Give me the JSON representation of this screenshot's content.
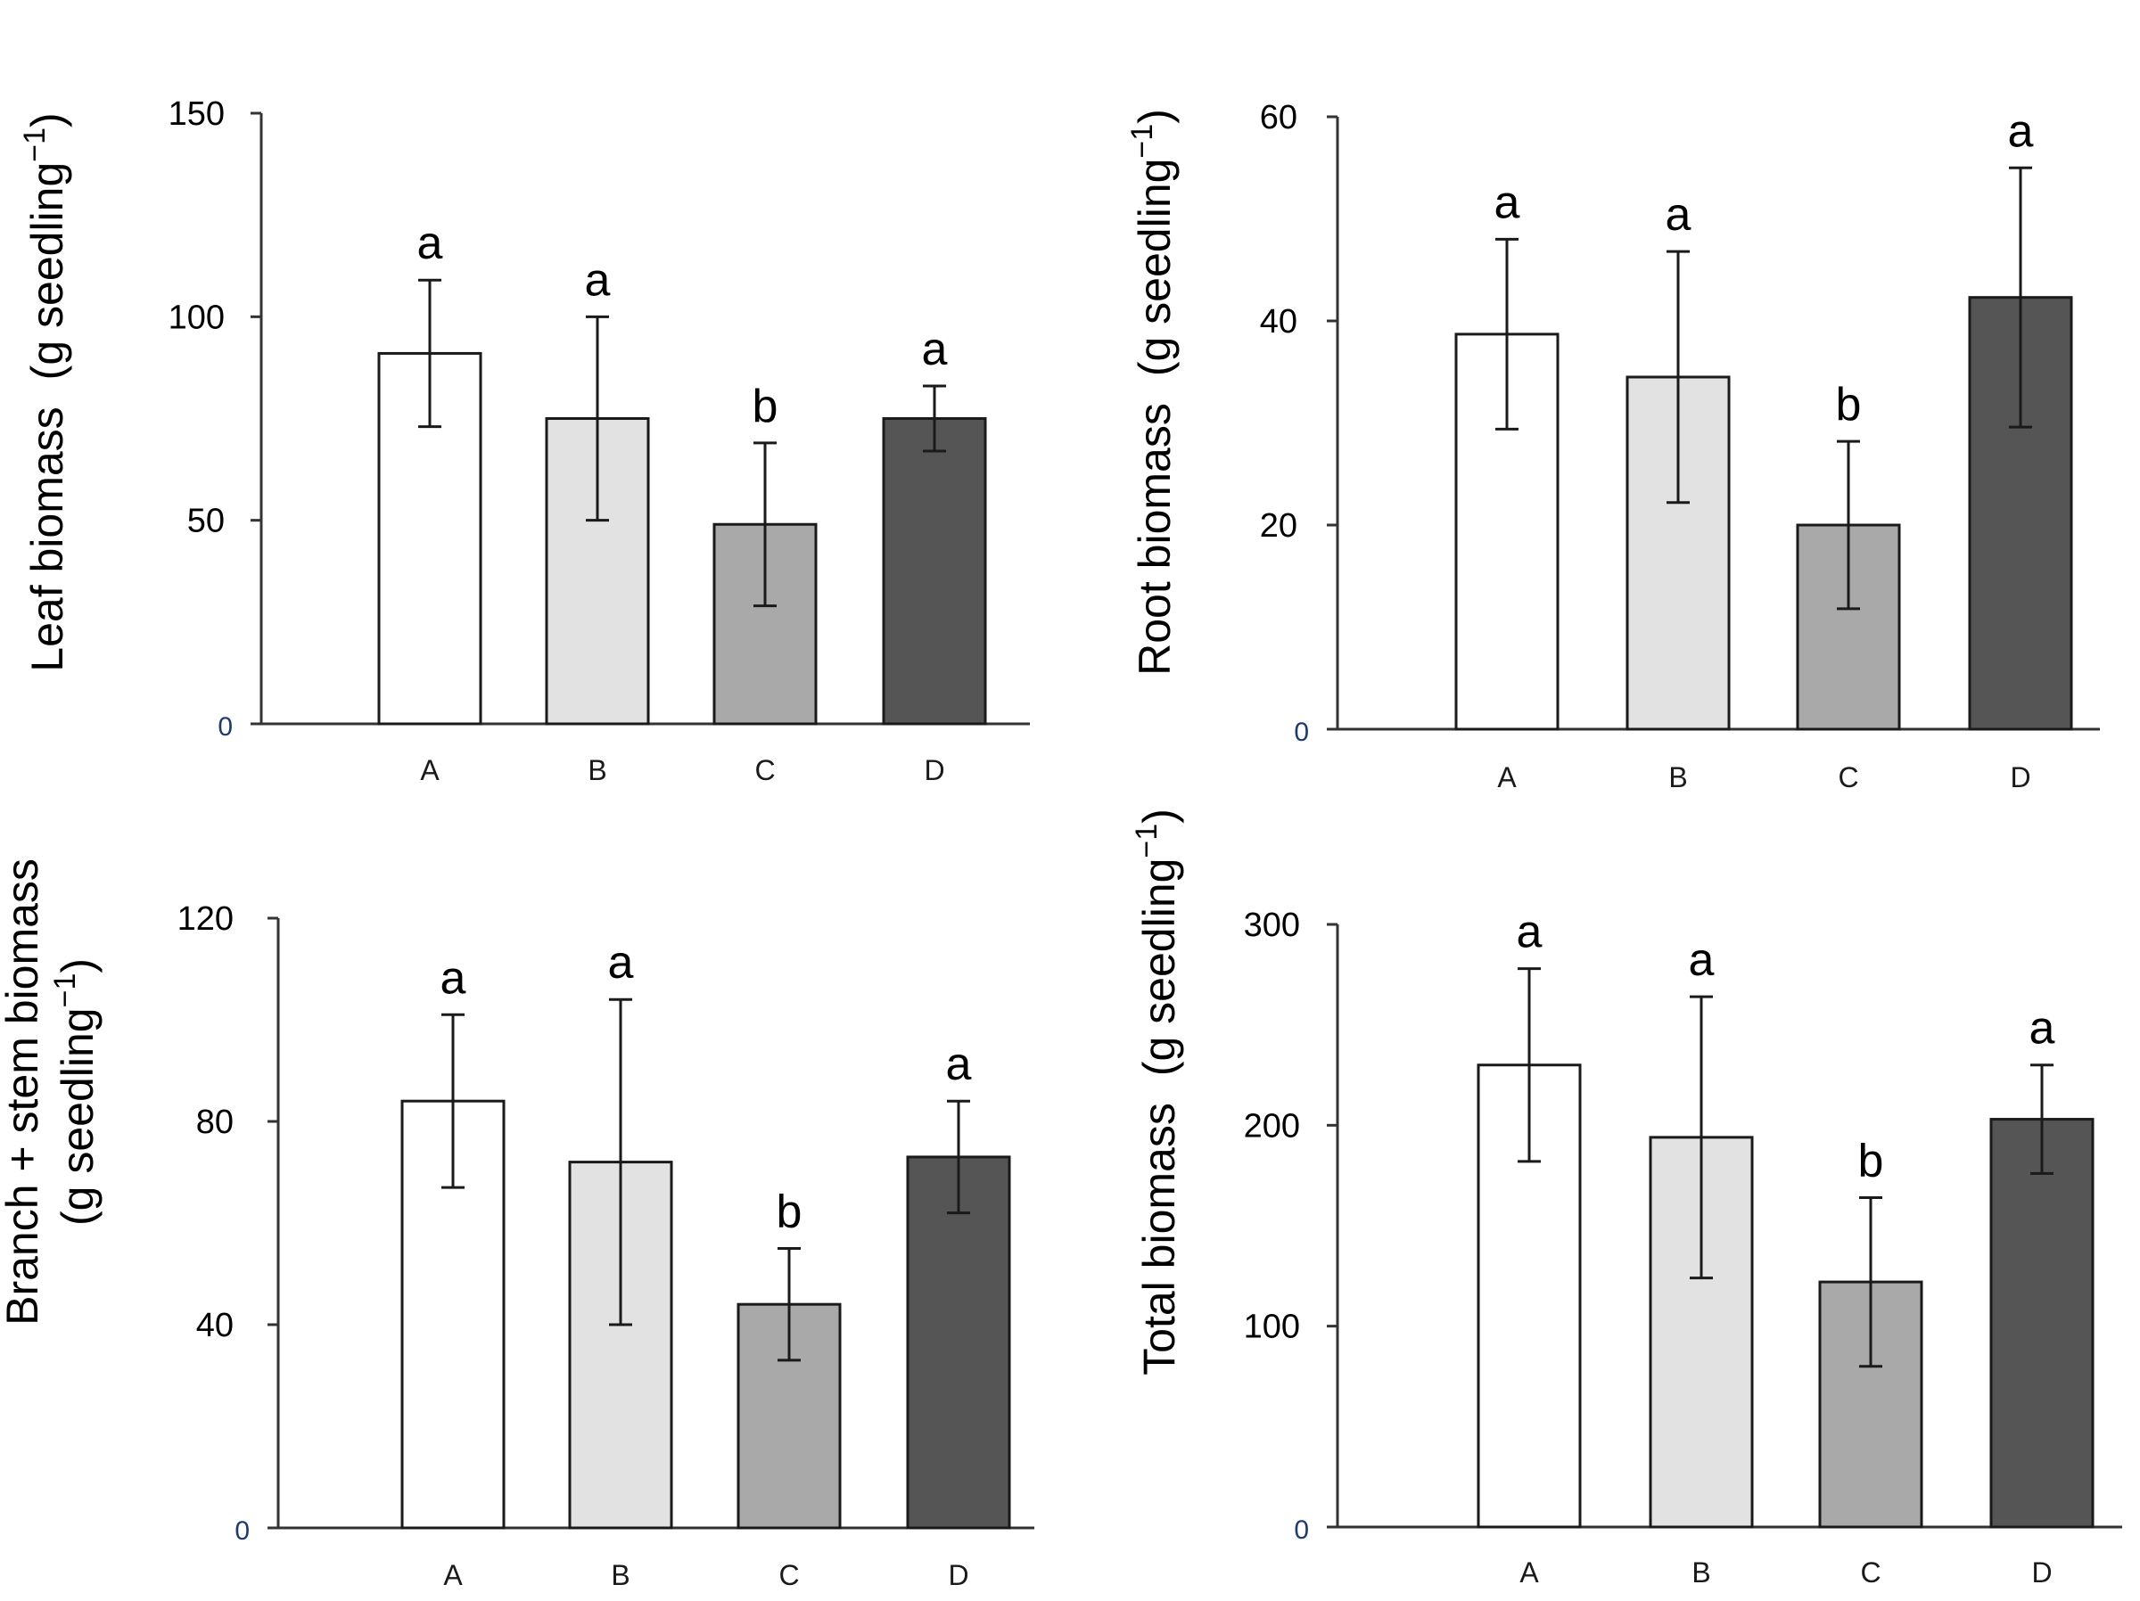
{
  "chart_data": [
    {
      "type": "bar",
      "id": "leaf",
      "categories": [
        "A",
        "B",
        "C",
        "D"
      ],
      "values": [
        91,
        75,
        49,
        75
      ],
      "errors": [
        18,
        25,
        20,
        8
      ],
      "significance": [
        "a",
        "a",
        "b",
        "a"
      ],
      "ylabel_main": "Leaf biomass",
      "ylabel_unit": "(g seedling",
      "ylabel_exp": "−1",
      "ylabel_close": ")",
      "ylim": [
        0,
        150
      ],
      "yticks": [
        0,
        50,
        100,
        150
      ],
      "ytick_labels": [
        "0",
        "50",
        "100",
        "150"
      ],
      "colors": [
        "#ffffff",
        "#e2e2e2",
        "#a9a9a9",
        "#555555"
      ]
    },
    {
      "type": "bar",
      "id": "root",
      "categories": [
        "A",
        "B",
        "C",
        "D"
      ],
      "values": [
        38.7,
        34.5,
        20,
        42.3
      ],
      "errors": [
        9.3,
        12.3,
        8.2,
        12.7
      ],
      "significance": [
        "a",
        "a",
        "b",
        "a"
      ],
      "ylabel_main": "Root biomass",
      "ylabel_unit": "(g seedling",
      "ylabel_exp": "−1",
      "ylabel_close": ")",
      "ylim": [
        0,
        60
      ],
      "yticks": [
        0,
        20,
        40,
        60
      ],
      "ytick_labels": [
        "0",
        "20",
        "40",
        "60"
      ],
      "colors": [
        "#ffffff",
        "#e2e2e2",
        "#a9a9a9",
        "#555555"
      ]
    },
    {
      "type": "bar",
      "id": "branch",
      "categories": [
        "A",
        "B",
        "C",
        "D"
      ],
      "values": [
        84,
        72,
        44,
        73
      ],
      "errors": [
        17,
        32,
        11,
        11
      ],
      "significance": [
        "a",
        "a",
        "b",
        "a"
      ],
      "ylabel_main": "Branch + stem biomass",
      "ylabel_unit": "(g seedling",
      "ylabel_exp": "−1",
      "ylabel_close": ")",
      "ylim": [
        0,
        120
      ],
      "yticks": [
        0,
        40,
        80,
        120
      ],
      "ytick_labels": [
        "0",
        "40",
        "80",
        "120"
      ],
      "colors": [
        "#ffffff",
        "#e2e2e2",
        "#a9a9a9",
        "#555555"
      ]
    },
    {
      "type": "bar",
      "id": "total",
      "categories": [
        "A",
        "B",
        "C",
        "D"
      ],
      "values": [
        230,
        194,
        122,
        203
      ],
      "errors": [
        48,
        70,
        42,
        27
      ],
      "significance": [
        "a",
        "a",
        "b",
        "a"
      ],
      "ylabel_main": "Total biomass",
      "ylabel_unit": "(g seedling",
      "ylabel_exp": "−1",
      "ylabel_close": ")",
      "ylim": [
        0,
        300
      ],
      "yticks": [
        0,
        100,
        200,
        300
      ],
      "ytick_labels": [
        "0",
        "100",
        "200",
        "300"
      ],
      "colors": [
        "#ffffff",
        "#e2e2e2",
        "#a9a9a9",
        "#555555"
      ]
    }
  ]
}
